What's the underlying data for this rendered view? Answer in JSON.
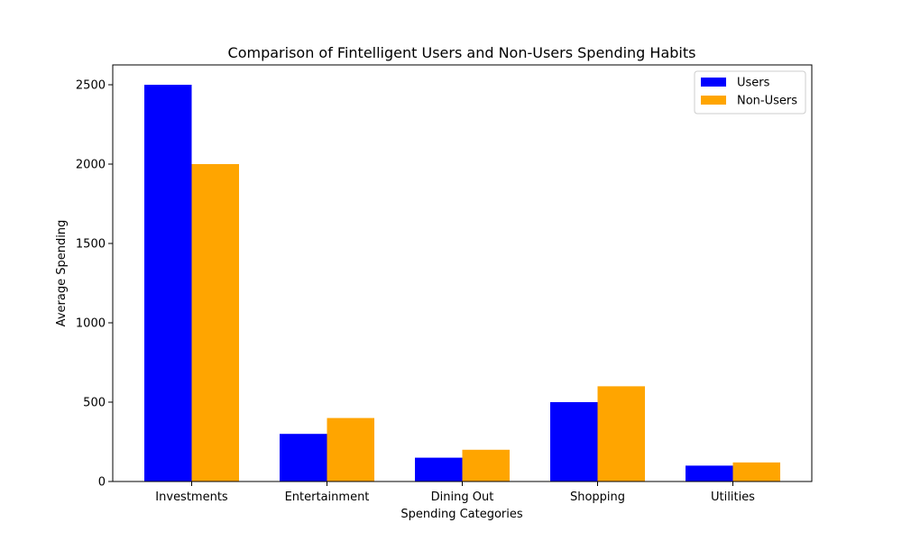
{
  "chart_data": {
    "type": "bar",
    "title": "Comparison of Fintelligent Users and Non-Users Spending Habits",
    "xlabel": "Spending Categories",
    "ylabel": "Average Spending",
    "categories": [
      "Investments",
      "Entertainment",
      "Dining Out",
      "Shopping",
      "Utilities"
    ],
    "series": [
      {
        "name": "Users",
        "color": "#0000ff",
        "values": [
          2500,
          300,
          150,
          500,
          100
        ]
      },
      {
        "name": "Non-Users",
        "color": "#ffa500",
        "values": [
          2000,
          400,
          200,
          600,
          120
        ]
      }
    ],
    "ylim": [
      0,
      2625
    ],
    "yticks": [
      0,
      500,
      1000,
      1500,
      2000,
      2500
    ],
    "grid": false,
    "legend_position": "top-right"
  }
}
